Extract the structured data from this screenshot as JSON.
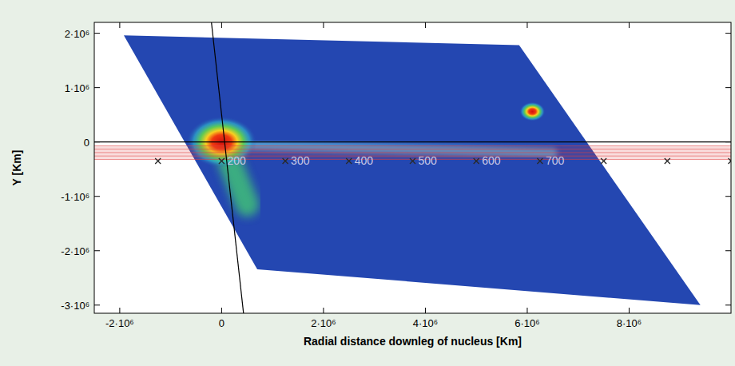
{
  "chart_data": {
    "type": "scatter",
    "x_label": "Radial distance downleg of nucleus [Km]",
    "y_label": "Y [Km]",
    "xlim": [
      -2500000,
      10000000
    ],
    "ylim": [
      -3150000,
      2200000
    ],
    "xticks": [
      {
        "value": -2000000,
        "label": "-2·10⁶"
      },
      0,
      {
        "value": 2000000,
        "label": "2·10⁶"
      },
      {
        "value": 4000000,
        "label": "4·10⁶"
      },
      {
        "value": 6000000,
        "label": "6·10⁶"
      },
      {
        "value": 8000000,
        "label": "8·10⁶"
      }
    ],
    "yticks": [
      {
        "value": -3000000,
        "label": "-3·10⁶"
      },
      {
        "value": -2000000,
        "label": "-2·10⁶"
      },
      {
        "value": -1000000,
        "label": "-1·10⁶"
      },
      0,
      {
        "value": 1000000,
        "label": "1·10⁶"
      },
      {
        "value": 2000000,
        "label": "2·10⁶"
      }
    ],
    "series": [
      {
        "marker": "x",
        "color": "#2a2a2a",
        "x": [
          -1250000,
          0,
          1250000,
          2500000,
          3750000,
          5000000,
          6250000,
          7500000,
          8750000,
          10000000
        ],
        "values": [
          -350000,
          -350000,
          -350000,
          -350000,
          -350000,
          -350000,
          -350000,
          -350000,
          -350000,
          -350000
        ]
      }
    ],
    "annotations": [
      {
        "text": "200",
        "x": 0,
        "y": -350000
      },
      {
        "text": "300",
        "x": 1250000,
        "y": -350000
      },
      {
        "text": "400",
        "x": 2500000,
        "y": -350000
      },
      {
        "text": "500",
        "x": 3750000,
        "y": -350000
      },
      {
        "text": "600",
        "x": 5000000,
        "y": -350000
      },
      {
        "text": "700",
        "x": 6250000,
        "y": -350000
      }
    ],
    "footprint": {
      "x": [
        -1920000,
        5840000,
        9400000,
        700000
      ],
      "y": [
        1960000,
        1780000,
        -3000000,
        -2340000
      ],
      "color": "#2447b1"
    },
    "sources": [
      {
        "x": 0,
        "y": 0
      },
      {
        "x": 6100000,
        "y": 560000
      }
    ],
    "tail": {
      "x": [
        0,
        3000000,
        6500000
      ],
      "y": [
        -50000,
        -120000,
        -200000
      ]
    },
    "plume": {
      "x": [
        0,
        500000
      ],
      "y": [
        0,
        -1150000
      ]
    },
    "reference_lines": [
      {
        "x": [
          -2500000,
          10000000
        ],
        "y": [
          0,
          0
        ],
        "color": "#000000"
      },
      {
        "x": [
          -200000,
          430000
        ],
        "y": [
          2200000,
          -3150000
        ],
        "color": "#000000"
      }
    ],
    "band": {
      "y": [
        -70000,
        -320000
      ],
      "color": "#e04040"
    }
  }
}
